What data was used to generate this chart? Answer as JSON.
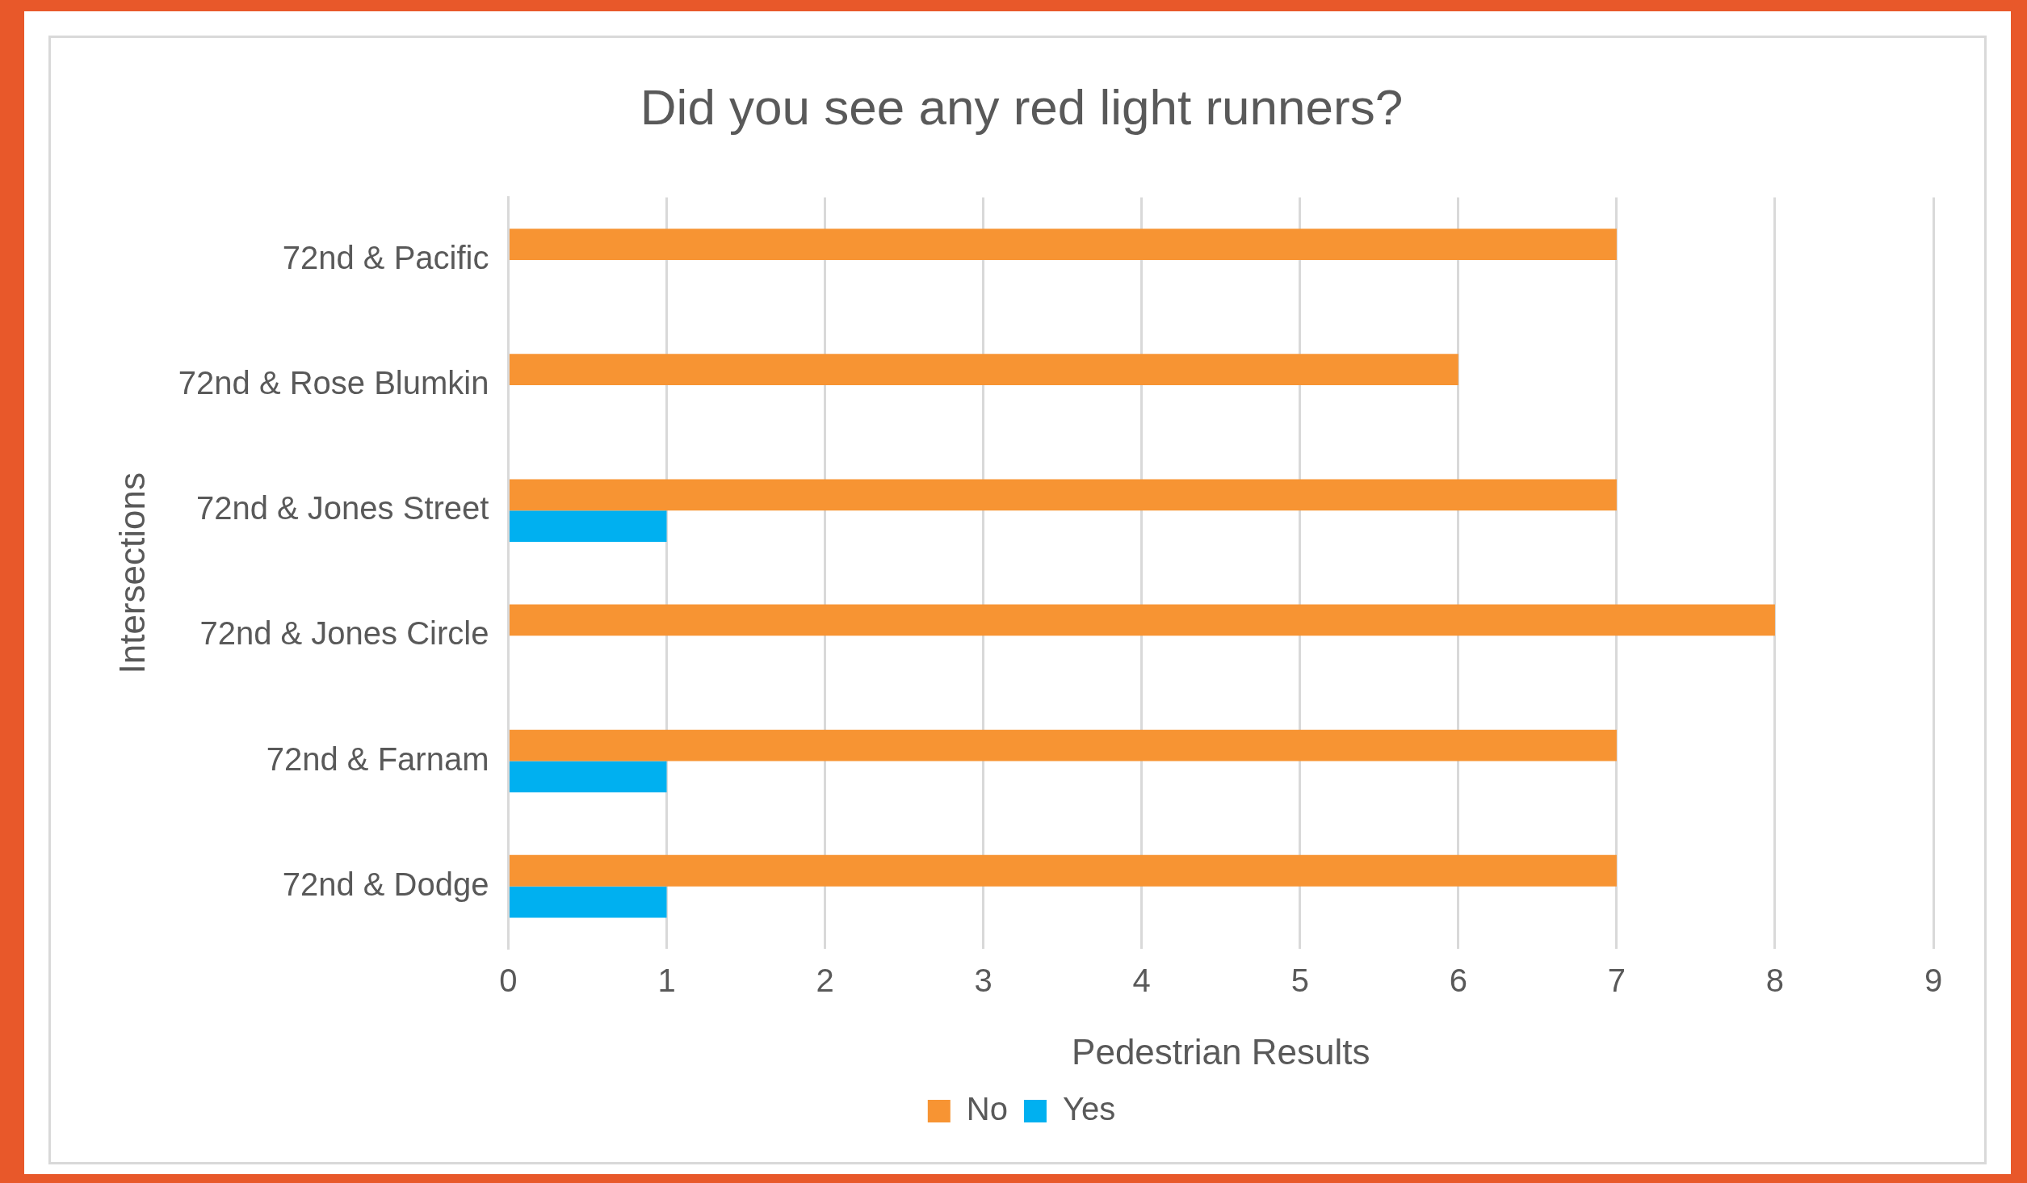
{
  "chart_data": {
    "type": "bar",
    "orientation": "horizontal",
    "title": "Did you see any red light runners?",
    "xlabel": "Pedestrian Results",
    "ylabel": "Intersections",
    "categories": [
      "72nd & Pacific",
      "72nd & Rose Blumkin",
      "72nd & Jones Street",
      "72nd & Jones Circle",
      "72nd & Farnam",
      "72nd & Dodge"
    ],
    "series": [
      {
        "name": "No",
        "color": "#f79433",
        "values": [
          7,
          6,
          7,
          8,
          7,
          7
        ]
      },
      {
        "name": "Yes",
        "color": "#00b0f0",
        "values": [
          0,
          0,
          1,
          0,
          1,
          1
        ]
      }
    ],
    "xlim": [
      0,
      9
    ],
    "xticks": [
      0,
      1,
      2,
      3,
      4,
      5,
      6,
      7,
      8,
      9
    ],
    "grid": "x",
    "legend": "bottom"
  }
}
